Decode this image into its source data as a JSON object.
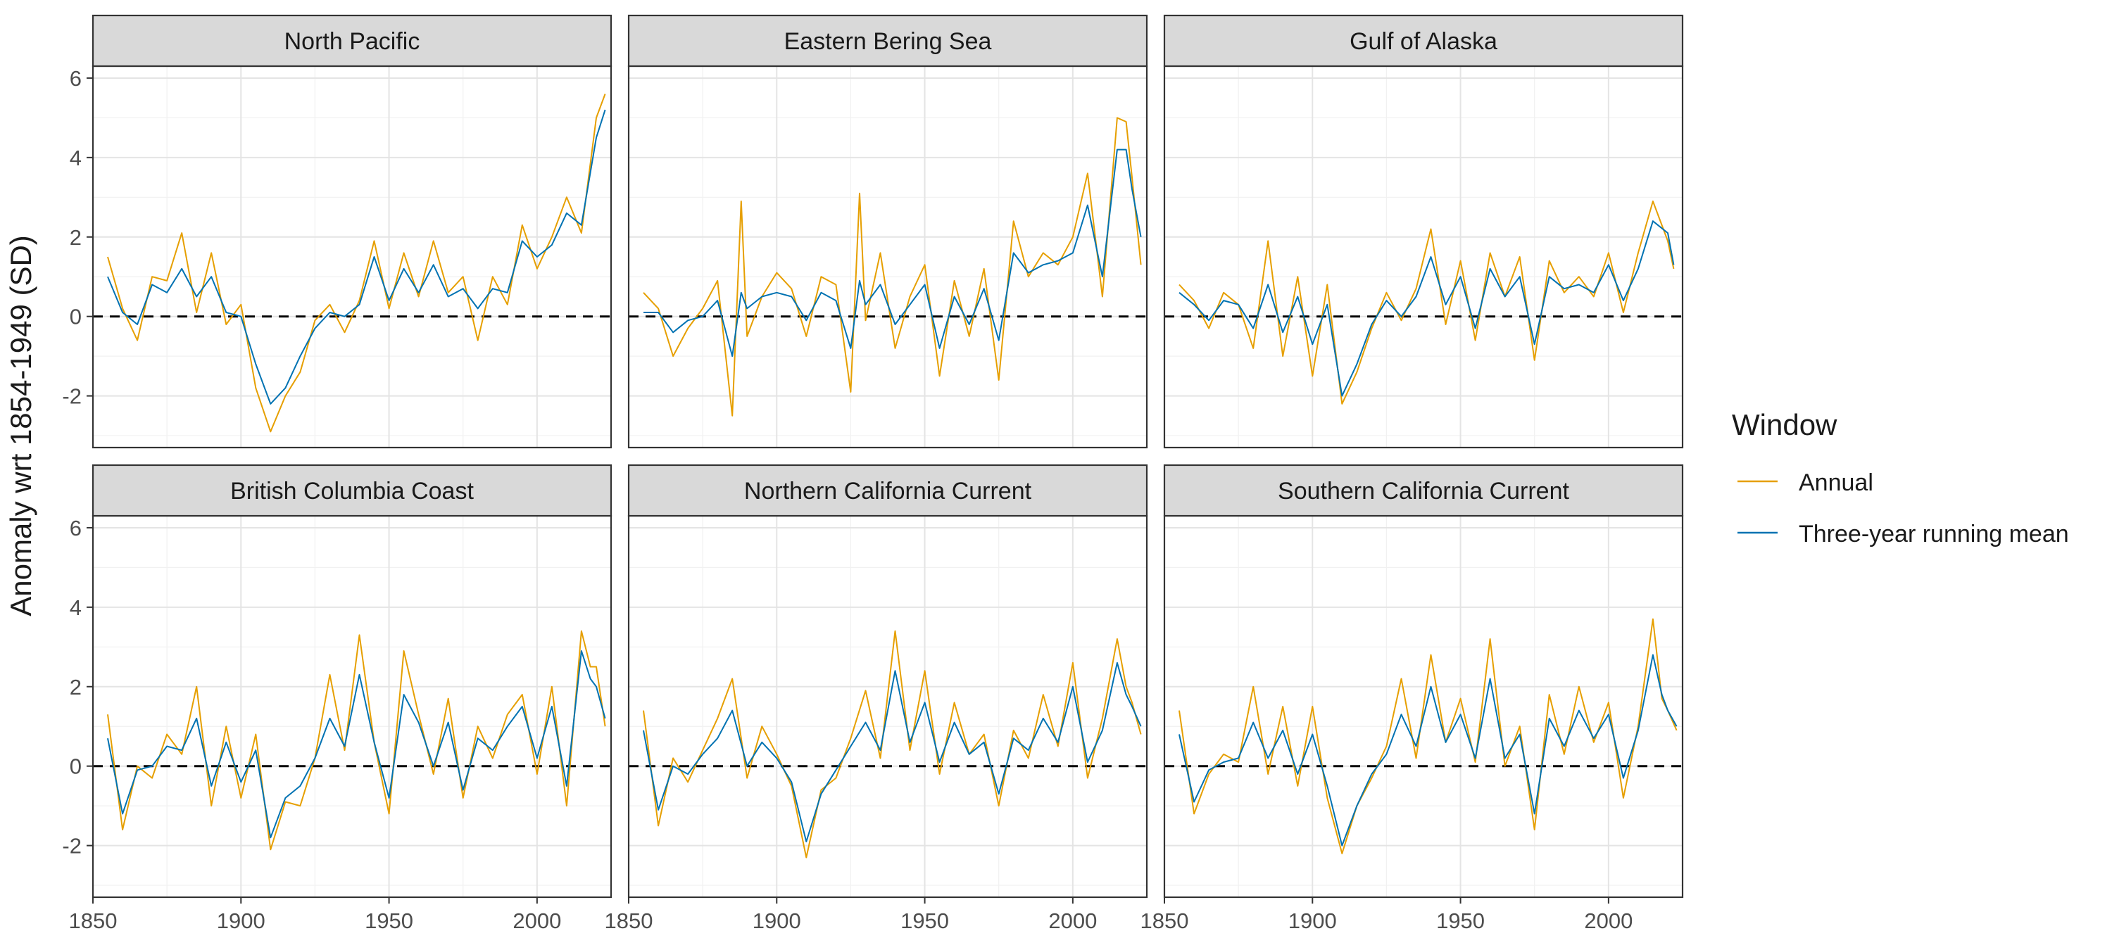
{
  "figure": {
    "ylabel": "Anomaly wrt 1854-1949 (SD)",
    "legend": {
      "title": "Window",
      "entries": [
        {
          "label": "Annual",
          "color": "#E69F00"
        },
        {
          "label": "Three-year running mean",
          "color": "#0072B2"
        }
      ]
    }
  },
  "chart_data": [
    {
      "type": "line",
      "title": "North Pacific",
      "xlim": [
        1850,
        2025
      ],
      "ylim": [
        -3.3,
        6.3
      ],
      "x_ticks": [
        1850,
        1900,
        1950,
        2000
      ],
      "y_ticks": [
        -2,
        0,
        2,
        4,
        6
      ],
      "grid": true,
      "reference_line": 0,
      "x": [
        1855,
        1860,
        1865,
        1870,
        1875,
        1880,
        1885,
        1890,
        1895,
        1900,
        1905,
        1910,
        1915,
        1920,
        1925,
        1930,
        1935,
        1940,
        1945,
        1950,
        1955,
        1960,
        1965,
        1970,
        1975,
        1980,
        1985,
        1990,
        1995,
        2000,
        2005,
        2010,
        2015,
        2020,
        2023
      ],
      "series": [
        {
          "name": "Annual",
          "values": [
            1.5,
            0.2,
            -0.6,
            1.0,
            0.9,
            2.1,
            0.1,
            1.6,
            -0.2,
            0.3,
            -1.8,
            -2.9,
            -2.0,
            -1.4,
            -0.1,
            0.3,
            -0.4,
            0.4,
            1.9,
            0.2,
            1.6,
            0.5,
            1.9,
            0.6,
            1.0,
            -0.6,
            1.0,
            0.3,
            2.3,
            1.2,
            2.0,
            3.0,
            2.1,
            5.0,
            5.6
          ]
        },
        {
          "name": "Three-year running mean",
          "values": [
            1.0,
            0.1,
            -0.2,
            0.8,
            0.6,
            1.2,
            0.5,
            1.0,
            0.1,
            0.0,
            -1.2,
            -2.2,
            -1.8,
            -1.0,
            -0.3,
            0.1,
            0.0,
            0.3,
            1.5,
            0.4,
            1.2,
            0.6,
            1.3,
            0.5,
            0.7,
            0.2,
            0.7,
            0.6,
            1.9,
            1.5,
            1.8,
            2.6,
            2.3,
            4.5,
            5.2
          ]
        }
      ]
    },
    {
      "type": "line",
      "title": "Eastern Bering Sea",
      "xlim": [
        1850,
        2025
      ],
      "ylim": [
        -3.3,
        6.3
      ],
      "x_ticks": [
        1850,
        1900,
        1950,
        2000
      ],
      "y_ticks": [
        -2,
        0,
        2,
        4,
        6
      ],
      "grid": true,
      "reference_line": 0,
      "x": [
        1855,
        1860,
        1865,
        1870,
        1875,
        1880,
        1885,
        1888,
        1890,
        1895,
        1900,
        1905,
        1910,
        1915,
        1920,
        1925,
        1928,
        1930,
        1935,
        1940,
        1945,
        1950,
        1955,
        1960,
        1965,
        1970,
        1975,
        1980,
        1985,
        1990,
        1995,
        2000,
        2005,
        2010,
        2015,
        2018,
        2020,
        2023
      ],
      "series": [
        {
          "name": "Annual",
          "values": [
            0.6,
            0.2,
            -1.0,
            -0.3,
            0.2,
            0.9,
            -2.5,
            2.9,
            -0.5,
            0.5,
            1.1,
            0.7,
            -0.5,
            1.0,
            0.8,
            -1.9,
            3.1,
            -0.1,
            1.6,
            -0.8,
            0.5,
            1.3,
            -1.5,
            0.9,
            -0.5,
            1.2,
            -1.6,
            2.4,
            1.0,
            1.6,
            1.3,
            2.0,
            3.6,
            0.5,
            5.0,
            4.9,
            3.5,
            1.3
          ]
        },
        {
          "name": "Three-year running mean",
          "values": [
            0.1,
            0.1,
            -0.4,
            -0.1,
            0.0,
            0.4,
            -1.0,
            0.6,
            0.2,
            0.5,
            0.6,
            0.5,
            -0.1,
            0.6,
            0.4,
            -0.8,
            0.9,
            0.3,
            0.8,
            -0.2,
            0.3,
            0.8,
            -0.8,
            0.5,
            -0.2,
            0.7,
            -0.6,
            1.6,
            1.1,
            1.3,
            1.4,
            1.6,
            2.8,
            1.0,
            4.2,
            4.2,
            3.2,
            2.0
          ]
        }
      ]
    },
    {
      "type": "line",
      "title": "Gulf of Alaska",
      "xlim": [
        1850,
        2025
      ],
      "ylim": [
        -3.3,
        6.3
      ],
      "x_ticks": [
        1850,
        1900,
        1950,
        2000
      ],
      "y_ticks": [
        -2,
        0,
        2,
        4,
        6
      ],
      "grid": true,
      "reference_line": 0,
      "x": [
        1855,
        1860,
        1865,
        1870,
        1875,
        1880,
        1885,
        1890,
        1895,
        1900,
        1905,
        1910,
        1915,
        1920,
        1925,
        1930,
        1935,
        1940,
        1945,
        1950,
        1955,
        1960,
        1965,
        1970,
        1975,
        1980,
        1985,
        1990,
        1995,
        2000,
        2005,
        2010,
        2015,
        2020,
        2022
      ],
      "series": [
        {
          "name": "Annual",
          "values": [
            0.8,
            0.4,
            -0.3,
            0.6,
            0.3,
            -0.8,
            1.9,
            -1.0,
            1.0,
            -1.5,
            0.8,
            -2.2,
            -1.4,
            -0.3,
            0.6,
            -0.1,
            0.7,
            2.2,
            -0.2,
            1.4,
            -0.6,
            1.6,
            0.5,
            1.5,
            -1.1,
            1.4,
            0.6,
            1.0,
            0.5,
            1.6,
            0.1,
            1.6,
            2.9,
            1.9,
            1.2
          ]
        },
        {
          "name": "Three-year running mean",
          "values": [
            0.6,
            0.3,
            -0.1,
            0.4,
            0.3,
            -0.3,
            0.8,
            -0.4,
            0.5,
            -0.7,
            0.3,
            -2.0,
            -1.2,
            -0.2,
            0.4,
            0.0,
            0.5,
            1.5,
            0.3,
            1.0,
            -0.3,
            1.2,
            0.5,
            1.0,
            -0.7,
            1.0,
            0.7,
            0.8,
            0.6,
            1.3,
            0.4,
            1.2,
            2.4,
            2.1,
            1.3
          ]
        }
      ]
    },
    {
      "type": "line",
      "title": "British Columbia Coast",
      "xlim": [
        1850,
        2025
      ],
      "ylim": [
        -3.3,
        6.3
      ],
      "x_ticks": [
        1850,
        1900,
        1950,
        2000
      ],
      "y_ticks": [
        -2,
        0,
        2,
        4,
        6
      ],
      "grid": true,
      "reference_line": 0,
      "x": [
        1855,
        1860,
        1865,
        1870,
        1875,
        1880,
        1885,
        1890,
        1895,
        1900,
        1905,
        1910,
        1915,
        1920,
        1925,
        1930,
        1935,
        1940,
        1945,
        1950,
        1955,
        1960,
        1965,
        1970,
        1975,
        1980,
        1985,
        1990,
        1995,
        2000,
        2005,
        2010,
        2015,
        2018,
        2020,
        2023
      ],
      "series": [
        {
          "name": "Annual",
          "values": [
            1.3,
            -1.6,
            0.0,
            -0.3,
            0.8,
            0.3,
            2.0,
            -1.0,
            1.0,
            -0.8,
            0.8,
            -2.1,
            -0.9,
            -1.0,
            0.2,
            2.3,
            0.4,
            3.3,
            0.6,
            -1.2,
            2.9,
            1.3,
            -0.2,
            1.7,
            -0.8,
            1.0,
            0.2,
            1.3,
            1.8,
            -0.2,
            2.0,
            -1.0,
            3.4,
            2.5,
            2.5,
            1.0
          ]
        },
        {
          "name": "Three-year running mean",
          "values": [
            0.7,
            -1.2,
            -0.1,
            0.0,
            0.5,
            0.4,
            1.2,
            -0.5,
            0.6,
            -0.4,
            0.4,
            -1.8,
            -0.8,
            -0.5,
            0.2,
            1.2,
            0.5,
            2.3,
            0.6,
            -0.8,
            1.8,
            1.1,
            0.0,
            1.1,
            -0.6,
            0.7,
            0.4,
            1.0,
            1.5,
            0.2,
            1.5,
            -0.5,
            2.9,
            2.2,
            2.0,
            1.2
          ]
        }
      ]
    },
    {
      "type": "line",
      "title": "Northern California Current",
      "xlim": [
        1850,
        2025
      ],
      "ylim": [
        -3.3,
        6.3
      ],
      "x_ticks": [
        1850,
        1900,
        1950,
        2000
      ],
      "y_ticks": [
        -2,
        0,
        2,
        4,
        6
      ],
      "grid": true,
      "reference_line": 0,
      "x": [
        1855,
        1860,
        1865,
        1870,
        1875,
        1880,
        1885,
        1890,
        1895,
        1900,
        1905,
        1910,
        1915,
        1920,
        1925,
        1930,
        1935,
        1940,
        1945,
        1950,
        1955,
        1960,
        1965,
        1970,
        1975,
        1980,
        1985,
        1990,
        1995,
        2000,
        2005,
        2010,
        2015,
        2018,
        2020,
        2023
      ],
      "series": [
        {
          "name": "Annual",
          "values": [
            1.4,
            -1.5,
            0.2,
            -0.4,
            0.4,
            1.2,
            2.2,
            -0.3,
            1.0,
            0.3,
            -0.5,
            -2.3,
            -0.6,
            -0.3,
            0.7,
            1.9,
            0.2,
            3.4,
            0.4,
            2.4,
            -0.2,
            1.6,
            0.3,
            0.8,
            -1.0,
            0.9,
            0.2,
            1.8,
            0.5,
            2.6,
            -0.3,
            1.2,
            3.2,
            2.0,
            1.6,
            0.8
          ]
        },
        {
          "name": "Three-year running mean",
          "values": [
            0.9,
            -1.1,
            0.0,
            -0.2,
            0.3,
            0.7,
            1.4,
            0.0,
            0.6,
            0.2,
            -0.4,
            -1.9,
            -0.7,
            -0.1,
            0.5,
            1.1,
            0.4,
            2.4,
            0.6,
            1.6,
            0.1,
            1.1,
            0.3,
            0.6,
            -0.7,
            0.7,
            0.4,
            1.2,
            0.6,
            2.0,
            0.1,
            0.9,
            2.6,
            1.8,
            1.5,
            1.0
          ]
        }
      ]
    },
    {
      "type": "line",
      "title": "Southern California Current",
      "xlim": [
        1850,
        2025
      ],
      "ylim": [
        -3.3,
        6.3
      ],
      "x_ticks": [
        1850,
        1900,
        1950,
        2000
      ],
      "y_ticks": [
        -2,
        0,
        2,
        4,
        6
      ],
      "grid": true,
      "reference_line": 0,
      "x": [
        1855,
        1860,
        1865,
        1870,
        1875,
        1880,
        1885,
        1890,
        1895,
        1900,
        1905,
        1910,
        1915,
        1920,
        1925,
        1930,
        1935,
        1940,
        1945,
        1950,
        1955,
        1960,
        1965,
        1970,
        1975,
        1980,
        1985,
        1990,
        1995,
        2000,
        2005,
        2010,
        2015,
        2018,
        2020,
        2023
      ],
      "series": [
        {
          "name": "Annual",
          "values": [
            1.4,
            -1.2,
            -0.2,
            0.3,
            0.1,
            2.0,
            -0.2,
            1.5,
            -0.5,
            1.5,
            -0.8,
            -2.2,
            -1.0,
            -0.3,
            0.5,
            2.2,
            0.2,
            2.8,
            0.6,
            1.7,
            0.1,
            3.2,
            0.0,
            1.0,
            -1.6,
            1.8,
            0.3,
            2.0,
            0.6,
            1.6,
            -0.8,
            1.0,
            3.7,
            1.7,
            1.4,
            0.9
          ]
        },
        {
          "name": "Three-year running mean",
          "values": [
            0.8,
            -0.9,
            -0.1,
            0.1,
            0.2,
            1.1,
            0.2,
            0.9,
            -0.2,
            0.8,
            -0.5,
            -2.0,
            -1.0,
            -0.2,
            0.3,
            1.3,
            0.5,
            2.0,
            0.6,
            1.3,
            0.2,
            2.2,
            0.2,
            0.8,
            -1.2,
            1.2,
            0.5,
            1.4,
            0.7,
            1.3,
            -0.3,
            0.9,
            2.8,
            1.8,
            1.4,
            1.0
          ]
        }
      ]
    }
  ]
}
